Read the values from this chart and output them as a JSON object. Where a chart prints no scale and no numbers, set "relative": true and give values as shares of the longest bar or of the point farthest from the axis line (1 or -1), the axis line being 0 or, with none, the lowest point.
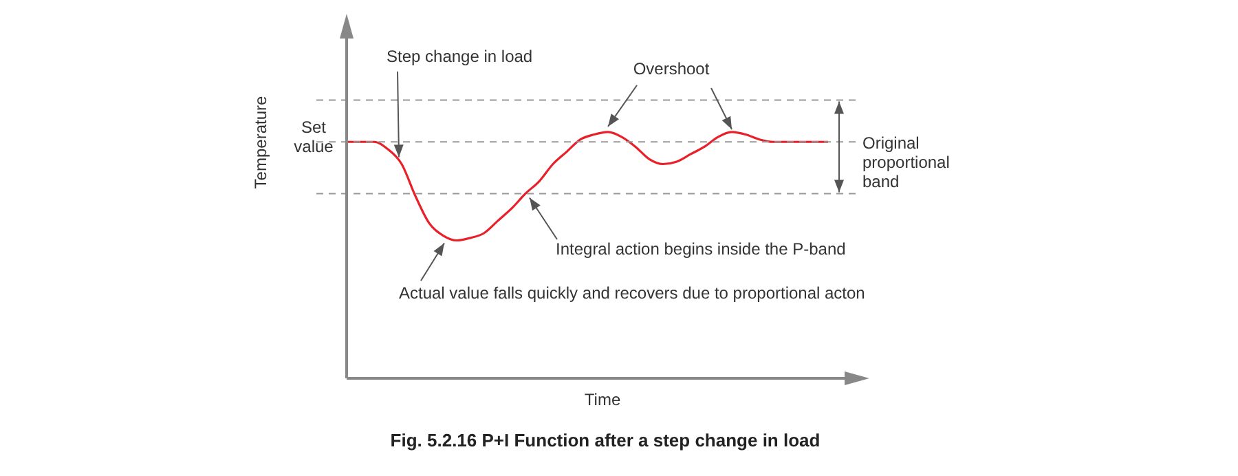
{
  "chart_data": {
    "type": "line",
    "relative": true,
    "title": "Fig. 5.2.16 P+I Function after a step change in load",
    "xlabel": "Time",
    "ylabel": "Temperature",
    "marker": "none",
    "line_style": "solid",
    "categories": [
      null,
      null,
      null,
      null,
      null,
      null,
      null,
      null,
      null,
      null,
      null,
      null,
      null,
      null,
      null,
      null,
      null,
      null,
      null,
      null,
      null,
      null,
      null,
      null,
      null,
      null,
      null,
      null,
      null,
      null,
      null,
      null,
      null,
      null,
      null,
      null
    ],
    "series": [
      {
        "color": "#e8202a",
        "values": [
          0.96,
          0.96,
          0.96,
          0.93,
          0.87,
          0.74,
          0.63,
          0.58,
          0.56,
          0.57,
          0.59,
          0.64,
          0.69,
          0.75,
          0.8,
          0.87,
          0.92,
          0.97,
          0.99,
          1,
          0.98,
          0.94,
          0.89,
          0.87,
          0.88,
          0.91,
          0.94,
          0.98,
          1,
          0.99,
          0.97,
          0.96,
          0.96,
          0.96,
          0.96,
          0.96
        ]
      }
    ],
    "ref_lines": [
      {
        "axis": "y",
        "value": 1.13,
        "color": "#999999",
        "line_style": "dashed"
      },
      {
        "axis": "y",
        "value": 0.96,
        "label": "Set value",
        "color": "#999999",
        "line_style": "dashed"
      },
      {
        "axis": "y",
        "value": 0.75,
        "color": "#999999",
        "line_style": "dashed"
      }
    ],
    "annotations": [
      "Step change in load",
      "Overshoot",
      "Integral action begins inside the P-band",
      "Actual value falls quickly and recovers due to proportional acton",
      "Original proportional band"
    ]
  }
}
